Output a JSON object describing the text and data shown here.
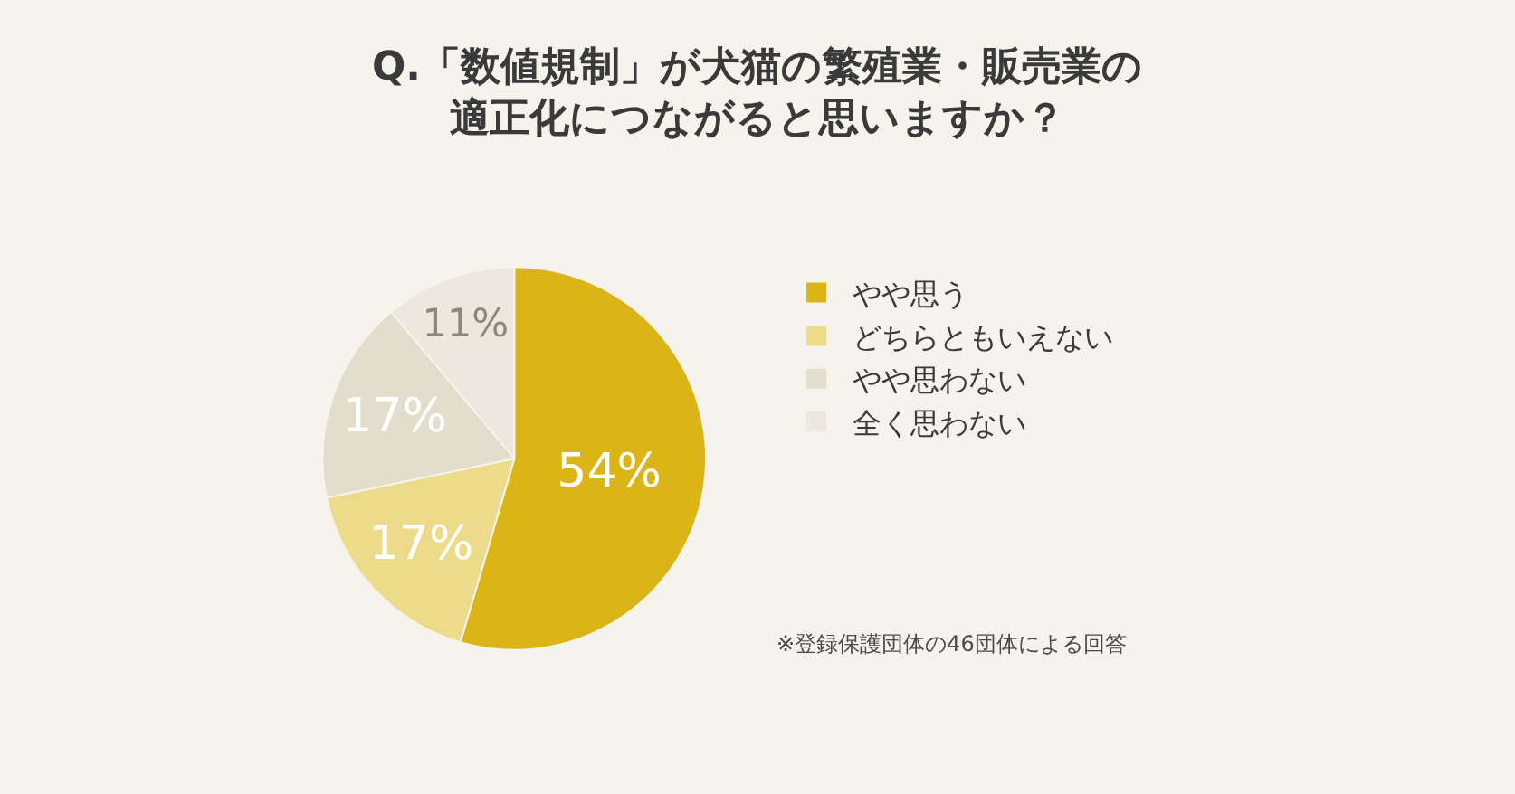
{
  "chart_data": {
    "type": "pie",
    "title": "Q.「数値規制」が犬猫の繁殖業・販売業の適正化につながると思いますか？",
    "categories": [
      "やや思う",
      "どちらともいえない",
      "やや思わない",
      "全く思わない"
    ],
    "values": [
      54,
      17,
      17,
      11
    ],
    "value_labels": [
      "54%",
      "17%",
      "17%",
      "11%"
    ],
    "colors": [
      "#dbb417",
      "#eddb8c",
      "#e3ddcc",
      "#ede8de"
    ],
    "legend": "right",
    "annotations": [
      "※登録保護団体の46団体による回答"
    ]
  }
}
